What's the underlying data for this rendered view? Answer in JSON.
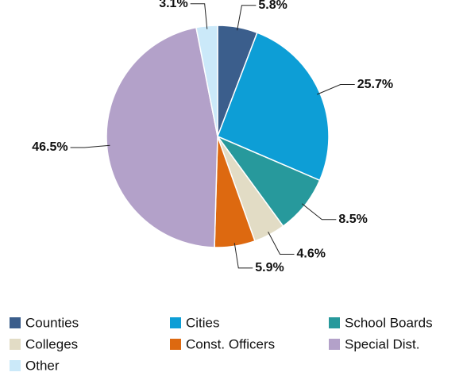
{
  "chart_data": {
    "type": "pie",
    "categories": [
      "Counties",
      "Cities",
      "School Boards",
      "Colleges",
      "Const. Officers",
      "Special Dist.",
      "Other"
    ],
    "values": [
      5.8,
      25.7,
      8.5,
      4.6,
      5.9,
      46.5,
      3.1
    ],
    "value_labels": [
      "5.8%",
      "25.7%",
      "8.5%",
      "4.6%",
      "5.9%",
      "46.5%",
      "3.1%"
    ],
    "colors": [
      "#3b5e8c",
      "#0d9ed6",
      "#27999c",
      "#e2dcc5",
      "#dd6910",
      "#b3a1c9",
      "#cbe9f9"
    ],
    "legend": "bottom"
  }
}
